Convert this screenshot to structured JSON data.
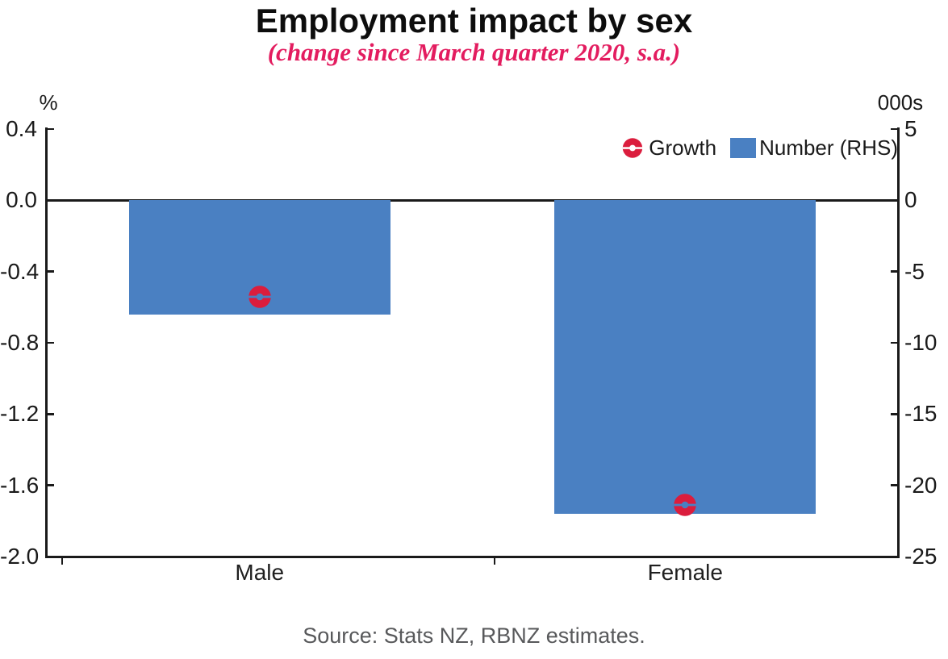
{
  "title": "Employment impact by sex",
  "subtitle": "(change since March quarter 2020, s.a.)",
  "source": "Source: Stats NZ, RBNZ estimates.",
  "colors": {
    "subtitle_pink": "#E31C5F",
    "bar_blue": "#4A80C2",
    "marker_red": "#DB1D3D",
    "axis_black": "#1a1a1a"
  },
  "legend": [
    {
      "label": "Growth",
      "icon": "donut-marker-icon",
      "color": "#DB1D3D"
    },
    {
      "label": "Number (RHS)",
      "icon": "square-swatch-icon",
      "color": "#4A80C2"
    }
  ],
  "chart_data": {
    "type": "bar",
    "title": "Employment impact by sex",
    "subtitle": "(change since March quarter 2020, s.a.)",
    "categories": [
      "Male",
      "Female"
    ],
    "series": [
      {
        "name": "Growth",
        "type": "point",
        "axis": "left",
        "color": "#DB1D3D",
        "values": [
          -0.54,
          -1.71
        ]
      },
      {
        "name": "Number (RHS)",
        "type": "bar",
        "axis": "right",
        "color": "#4A80C2",
        "values": [
          -8.0,
          -22.0
        ]
      }
    ],
    "left_axis": {
      "unit": "%",
      "max": 0.4,
      "min": -2.0,
      "ticks": [
        "0.4",
        "0.0",
        "-0.4",
        "-0.8",
        "-1.2",
        "-1.6",
        "-2.0"
      ]
    },
    "right_axis": {
      "unit": "000s",
      "max": 5,
      "min": -25,
      "ticks": [
        "5",
        "0",
        "-5",
        "-10",
        "-15",
        "-20",
        "-25"
      ]
    },
    "grid": false,
    "legend_position": "top-right",
    "zero_line": true
  }
}
